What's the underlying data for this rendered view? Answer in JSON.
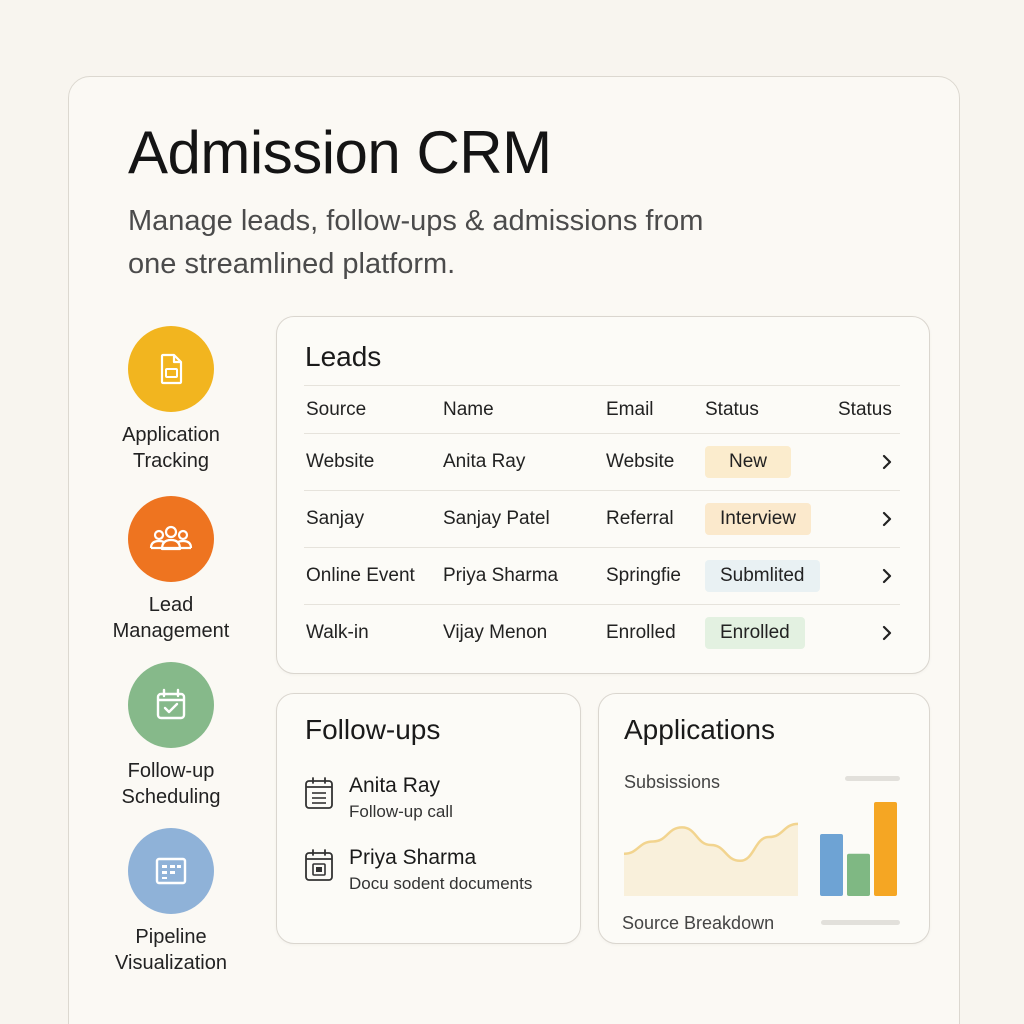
{
  "header": {
    "title": "Admission CRM",
    "subtitle": "Manage leads, follow-ups & admissions from one streamlined platform."
  },
  "features": [
    {
      "label_line1": "Application",
      "label_line2": "Tracking",
      "icon": "document-icon",
      "color": "#f2b51f"
    },
    {
      "label_line1": "Lead",
      "label_line2": "Management",
      "icon": "group-icon",
      "color": "#ee7420"
    },
    {
      "label_line1": "Follow-up",
      "label_line2": "Scheduling",
      "icon": "calendar-check-icon",
      "color": "#86b98a"
    },
    {
      "label_line1": "Pipeline",
      "label_line2": "Visualization",
      "icon": "board-icon",
      "color": "#8fb2d8"
    }
  ],
  "leads": {
    "title": "Leads",
    "columns": [
      "Source",
      "Name",
      "Email",
      "Status",
      "Status"
    ],
    "rows": [
      {
        "source": "Website",
        "name": "Anita Ray",
        "email": "Website",
        "status": "New",
        "status_color": "#fbeccd"
      },
      {
        "source": "Sanjay",
        "name": "Sanjay Patel",
        "email": "Referral",
        "status": "Interview",
        "status_color": "#fbe9cc"
      },
      {
        "source": "Online Event",
        "name": "Priya Sharma",
        "email": "Springfie",
        "status": "Submlited",
        "status_color": "#e9f1f3"
      },
      {
        "source": "Walk-in",
        "name": "Vijay Menon",
        "email": "Enrolled",
        "status": "Enrolled",
        "status_color": "#e3f1e1"
      }
    ]
  },
  "followups": {
    "title": "Follow-ups",
    "items": [
      {
        "name": "Anita Ray",
        "desc": "Follow-up call",
        "icon": "calendar-list-icon"
      },
      {
        "name": "Priya Sharma",
        "desc": "Docu sodent documents",
        "icon": "calendar-doc-icon"
      }
    ]
  },
  "applications": {
    "title": "Applications",
    "submissions_label": "Subsissions",
    "breakdown_label": "Source Breakdown",
    "colors": {
      "area": "#f6e3b7",
      "bar1": "#6ea3d4",
      "bar2": "#7fb883",
      "bar3": "#f5a623"
    }
  },
  "chart_data": [
    {
      "type": "area",
      "title": "Subsissions",
      "x": [
        1,
        2,
        3,
        4,
        5,
        6,
        7
      ],
      "values": [
        0.48,
        0.62,
        0.78,
        0.58,
        0.4,
        0.67,
        0.82
      ],
      "xlabel": "",
      "ylabel": ""
    },
    {
      "type": "bar",
      "title": "Source Breakdown",
      "categories": [
        "",
        "",
        ""
      ],
      "values": [
        0.66,
        0.45,
        1.0
      ]
    }
  ]
}
